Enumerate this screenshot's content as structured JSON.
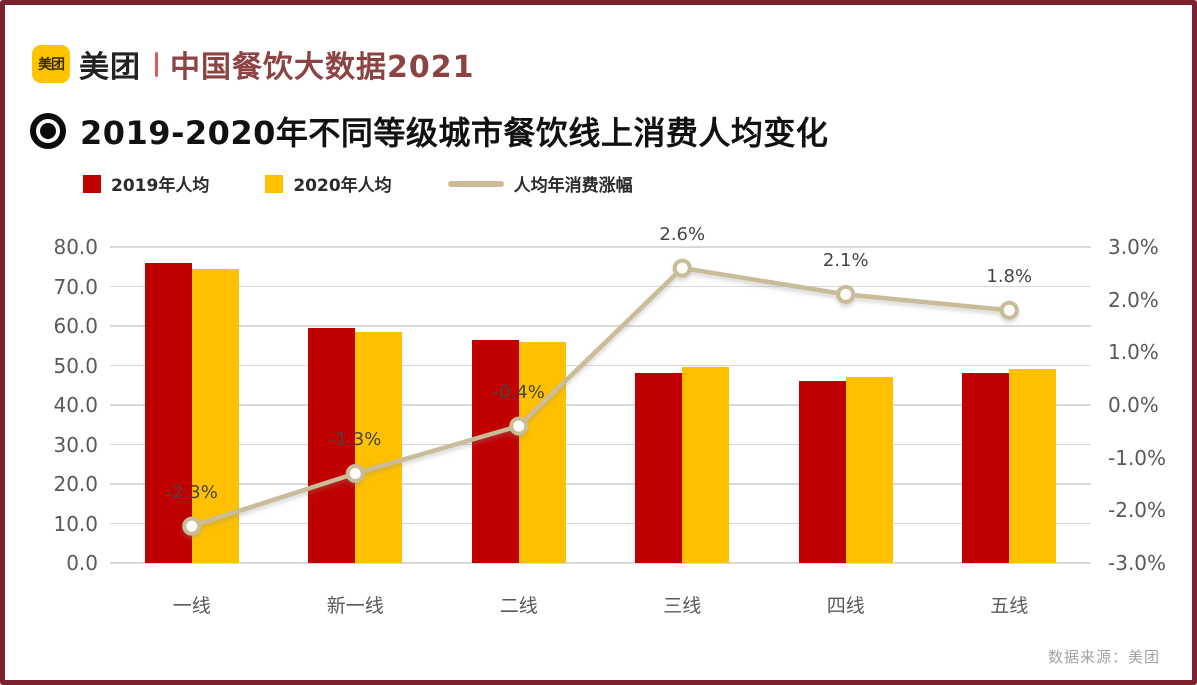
{
  "header": {
    "logo_badge": "美团",
    "wordmark": "美团",
    "brand_title": "中国餐饮大数据2021"
  },
  "chart_title": "2019-2020年不同等级城市餐饮线上消费人均变化",
  "legend": [
    {
      "label": "2019年人均",
      "color": "#c00000",
      "marker": "square"
    },
    {
      "label": "2020年人均",
      "color": "#ffc000",
      "marker": "square"
    },
    {
      "label": "人均年消费涨幅",
      "color": "#c9bc98",
      "marker": "line"
    }
  ],
  "source_note": "数据来源：美团",
  "colors": {
    "bar_2019": "#c00000",
    "bar_2020": "#ffc000",
    "growth_line": "#c9bc98",
    "gridline": "#d9d9d9",
    "axis_text": "#595959",
    "page_border": "#7e212e",
    "brand_red": "#8c4343",
    "logo_yellow": "#ffc300"
  },
  "chart_data": {
    "type": "bar",
    "subtype": "grouped bars with overlaid line (dual axis)",
    "categories": [
      "一线",
      "新一线",
      "二线",
      "三线",
      "四线",
      "五线"
    ],
    "series": [
      {
        "name": "2019年人均",
        "type": "bar",
        "axis": "left",
        "color": "#c00000",
        "values": [
          76,
          59.5,
          56.5,
          48,
          46,
          48
        ]
      },
      {
        "name": "2020年人均",
        "type": "bar",
        "axis": "left",
        "color": "#ffc000",
        "values": [
          74.5,
          58.5,
          56,
          49.5,
          47,
          49
        ]
      },
      {
        "name": "人均年消费涨幅",
        "type": "line",
        "axis": "right",
        "color": "#c9bc98",
        "values": [
          -2.3,
          -1.3,
          -0.4,
          2.6,
          2.1,
          1.8
        ],
        "labels": [
          "-2.3%",
          "-1.3%",
          "-0.4%",
          "2.6%",
          "2.1%",
          "1.8%"
        ]
      }
    ],
    "left_axis": {
      "min": 0,
      "max": 80,
      "step": 10,
      "tick_labels": [
        "80.0",
        "70.0",
        "60.0",
        "50.0",
        "40.0",
        "30.0",
        "20.0",
        "10.0",
        "0.0"
      ]
    },
    "right_axis": {
      "min": -3,
      "max": 3,
      "step": 1,
      "tick_labels": [
        "3.0%",
        "2.0%",
        "1.0%",
        "0.0%",
        "-1.0%",
        "-2.0%",
        "-3.0%"
      ]
    },
    "grid": true,
    "legend_position": "top-left",
    "title": "2019-2020年不同等级城市餐饮线上消费人均变化"
  }
}
